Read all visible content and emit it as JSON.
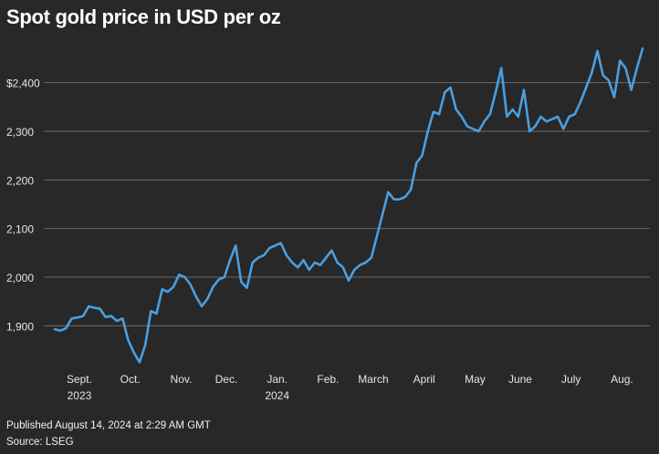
{
  "chart_data": {
    "type": "line",
    "title": "Spot gold price in USD per oz",
    "published": "Published August 14, 2024 at 2:29 AM GMT",
    "source": "Source: LSEG",
    "color": "#4a9ee0",
    "grid": true,
    "ylim": [
      1820,
      2495
    ],
    "yticks": [
      {
        "value": 1900,
        "label": "1,900"
      },
      {
        "value": 2000,
        "label": "2,000"
      },
      {
        "value": 2100,
        "label": "2,100"
      },
      {
        "value": 2200,
        "label": "2,200"
      },
      {
        "value": 2300,
        "label": "2,300"
      },
      {
        "value": 2400,
        "label": "$2,400"
      }
    ],
    "categories": [
      null,
      null,
      null,
      null,
      null,
      "Sept.\n2023",
      null,
      null,
      null,
      null,
      null,
      null,
      null,
      null,
      "Oct.",
      null,
      null,
      null,
      null,
      null,
      null,
      null,
      null,
      "Nov.",
      null,
      null,
      null,
      null,
      null,
      null,
      null,
      "Dec.",
      null,
      null,
      null,
      null,
      null,
      null,
      null,
      null,
      "Jan.\n2024",
      null,
      null,
      null,
      null,
      null,
      null,
      null,
      null,
      "Feb.",
      null,
      null,
      null,
      null,
      null,
      null,
      null,
      "March",
      null,
      null,
      null,
      null,
      null,
      null,
      null,
      null,
      "April",
      null,
      null,
      null,
      null,
      null,
      null,
      null,
      null,
      "May",
      null,
      null,
      null,
      null,
      null,
      null,
      null,
      "June",
      null,
      null,
      null,
      null,
      null,
      null,
      null,
      null,
      "July",
      null,
      null,
      null,
      null,
      null,
      null,
      null,
      null,
      "Aug.",
      null,
      null,
      null
    ],
    "values": [
      1893,
      1890,
      1895,
      1915,
      1917,
      1920,
      1940,
      1937,
      1935,
      1918,
      1920,
      1910,
      1915,
      1870,
      1845,
      1825,
      1860,
      1930,
      1925,
      1975,
      1970,
      1980,
      2005,
      2000,
      1985,
      1960,
      1940,
      1955,
      1980,
      1995,
      2000,
      2035,
      2065,
      1990,
      1978,
      2030,
      2040,
      2045,
      2060,
      2065,
      2070,
      2045,
      2030,
      2020,
      2035,
      2015,
      2030,
      2025,
      2040,
      2055,
      2030,
      2020,
      1993,
      2015,
      2025,
      2030,
      2040,
      2085,
      2130,
      2175,
      2160,
      2160,
      2165,
      2180,
      2235,
      2250,
      2300,
      2340,
      2335,
      2380,
      2390,
      2345,
      2330,
      2310,
      2305,
      2300,
      2320,
      2335,
      2380,
      2430,
      2330,
      2345,
      2330,
      2385,
      2300,
      2310,
      2330,
      2320,
      2325,
      2330,
      2305,
      2330,
      2335,
      2360,
      2390,
      2420,
      2465,
      2415,
      2405,
      2370,
      2445,
      2430,
      2385,
      2430,
      2470
    ]
  }
}
